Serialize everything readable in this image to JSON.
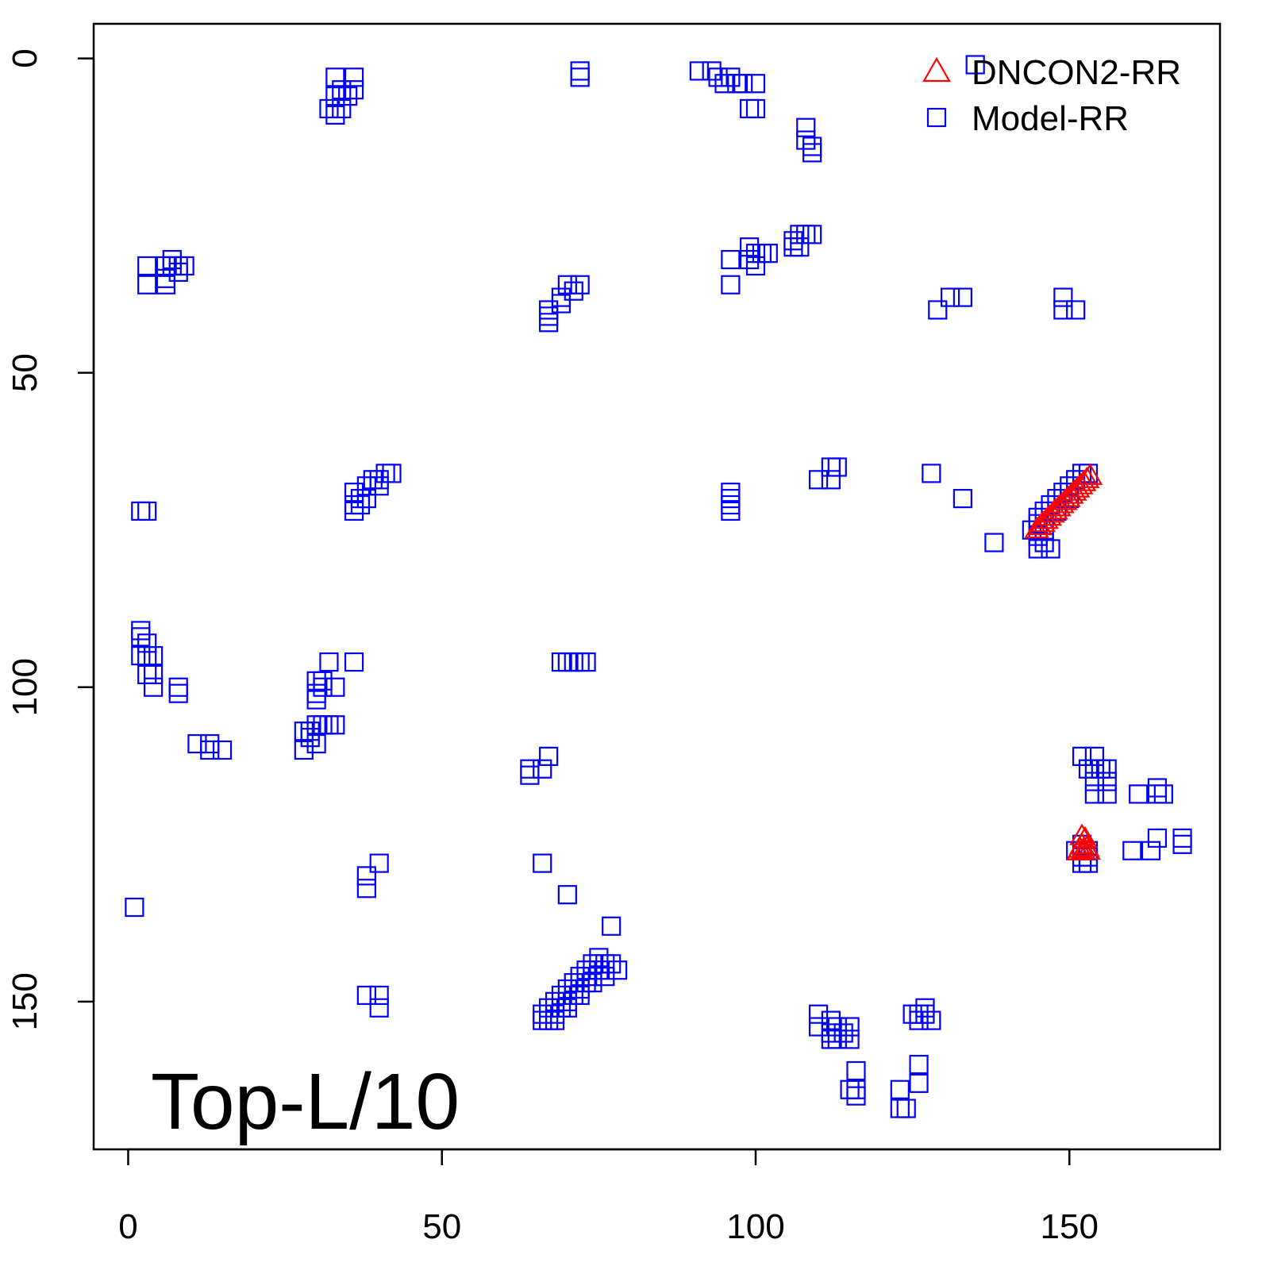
{
  "chart_data": {
    "type": "scatter",
    "title": "",
    "xlabel": "",
    "ylabel": "",
    "xlim": [
      -5.5,
      174
    ],
    "ylim": [
      -5.5,
      173.5
    ],
    "y_axis_inverted": true,
    "x_ticks": [
      0,
      50,
      100,
      150
    ],
    "y_ticks": [
      0,
      50,
      100,
      150
    ],
    "grid": false,
    "legend_position": "top-right",
    "annotation": "Top-L/10",
    "series": [
      {
        "name": "DNCON2-RR",
        "marker": "triangle",
        "color": "#ff0000",
        "points": [
          [
            144.8,
            74.8
          ],
          [
            145.3,
            74.3
          ],
          [
            145.8,
            73.8
          ],
          [
            146.3,
            73.3
          ],
          [
            146.8,
            72.8
          ],
          [
            147.3,
            72.3
          ],
          [
            147.8,
            71.8
          ],
          [
            148.3,
            71.3
          ],
          [
            148.8,
            70.8
          ],
          [
            149.3,
            70.3
          ],
          [
            149.8,
            69.8
          ],
          [
            150.3,
            69.3
          ],
          [
            150.8,
            68.8
          ],
          [
            151.3,
            68.3
          ],
          [
            151.8,
            67.8
          ],
          [
            152.3,
            67.3
          ],
          [
            152.8,
            66.8
          ],
          [
            153.3,
            66.3
          ],
          [
            151.5,
            126.0
          ],
          [
            152.0,
            125.0
          ],
          [
            152.5,
            124.0
          ],
          [
            151.7,
            125.6
          ],
          [
            152.2,
            125.8
          ],
          [
            152.8,
            125.4
          ],
          [
            153.0,
            125.9
          ],
          [
            152.0,
            123.6
          ]
        ]
      },
      {
        "name": "Model-RR",
        "marker": "square",
        "color": "#0000ff",
        "points": [
          [
            33,
            3
          ],
          [
            36,
            3
          ],
          [
            34,
            5
          ],
          [
            36,
            5
          ],
          [
            33,
            6
          ],
          [
            35,
            6
          ],
          [
            32,
            8
          ],
          [
            34,
            8
          ],
          [
            33,
            9
          ],
          [
            72,
            2
          ],
          [
            72,
            3
          ],
          [
            91,
            2
          ],
          [
            93,
            2
          ],
          [
            94,
            3
          ],
          [
            96,
            3
          ],
          [
            95,
            4
          ],
          [
            97,
            4
          ],
          [
            98,
            4
          ],
          [
            100,
            4
          ],
          [
            99,
            8
          ],
          [
            100,
            8
          ],
          [
            108,
            11
          ],
          [
            108,
            13
          ],
          [
            109,
            14
          ],
          [
            109,
            15
          ],
          [
            3,
            33
          ],
          [
            3,
            36
          ],
          [
            6,
            33
          ],
          [
            7,
            33
          ],
          [
            8,
            33
          ],
          [
            9,
            33
          ],
          [
            6,
            35
          ],
          [
            8,
            34
          ],
          [
            7,
            32
          ],
          [
            6,
            36
          ],
          [
            70,
            36
          ],
          [
            72,
            36
          ],
          [
            71,
            37
          ],
          [
            69,
            38
          ],
          [
            69,
            39
          ],
          [
            67,
            40
          ],
          [
            67,
            41
          ],
          [
            67,
            42
          ],
          [
            96,
            32
          ],
          [
            96,
            36
          ],
          [
            99,
            30
          ],
          [
            100,
            31
          ],
          [
            101,
            31
          ],
          [
            99,
            32
          ],
          [
            100,
            33
          ],
          [
            102,
            31
          ],
          [
            106,
            29
          ],
          [
            107,
            28
          ],
          [
            108,
            28
          ],
          [
            109,
            28
          ],
          [
            106,
            30
          ],
          [
            107,
            30
          ],
          [
            129,
            40
          ],
          [
            131,
            38
          ],
          [
            133,
            38
          ],
          [
            149,
            38
          ],
          [
            149,
            40
          ],
          [
            151,
            40
          ],
          [
            135,
            1
          ],
          [
            2,
            72
          ],
          [
            3,
            72
          ],
          [
            38,
            68
          ],
          [
            36,
            69
          ],
          [
            37,
            70
          ],
          [
            38,
            70
          ],
          [
            36,
            71
          ],
          [
            37,
            71
          ],
          [
            36,
            72
          ],
          [
            39,
            67
          ],
          [
            40,
            67
          ],
          [
            41,
            66
          ],
          [
            42,
            66
          ],
          [
            40,
            68
          ],
          [
            96,
            69
          ],
          [
            96,
            70
          ],
          [
            96,
            71
          ],
          [
            96,
            72
          ],
          [
            110,
            67
          ],
          [
            112,
            65
          ],
          [
            113,
            65
          ],
          [
            112,
            67
          ],
          [
            128,
            66
          ],
          [
            133,
            70
          ],
          [
            138,
            77
          ],
          [
            146,
            72
          ],
          [
            147,
            71
          ],
          [
            148,
            70
          ],
          [
            149,
            69
          ],
          [
            150,
            68
          ],
          [
            151,
            67
          ],
          [
            152,
            66
          ],
          [
            153,
            66
          ],
          [
            145,
            73
          ],
          [
            144,
            75
          ],
          [
            145,
            76
          ],
          [
            145,
            78
          ],
          [
            146,
            77
          ],
          [
            147,
            78
          ],
          [
            145,
            74
          ],
          [
            146,
            75
          ],
          [
            148,
            72
          ],
          [
            150,
            70
          ],
          [
            2,
            91
          ],
          [
            2,
            92
          ],
          [
            3,
            93
          ],
          [
            2,
            95
          ],
          [
            3,
            95
          ],
          [
            4,
            95
          ],
          [
            3,
            98
          ],
          [
            4,
            98
          ],
          [
            4,
            100
          ],
          [
            8,
            100
          ],
          [
            8,
            101
          ],
          [
            11,
            109
          ],
          [
            13,
            109
          ],
          [
            13,
            110
          ],
          [
            15,
            110
          ],
          [
            32,
            96
          ],
          [
            36,
            96
          ],
          [
            30,
            99
          ],
          [
            31,
            99
          ],
          [
            31,
            100
          ],
          [
            33,
            100
          ],
          [
            30,
            101
          ],
          [
            30,
            102
          ],
          [
            28,
            107
          ],
          [
            29,
            107
          ],
          [
            30,
            106
          ],
          [
            31,
            106
          ],
          [
            32,
            106
          ],
          [
            33,
            106
          ],
          [
            29,
            108
          ],
          [
            30,
            109
          ],
          [
            28,
            110
          ],
          [
            69,
            96
          ],
          [
            70,
            96
          ],
          [
            71,
            96
          ],
          [
            72,
            96
          ],
          [
            73,
            96
          ],
          [
            64,
            113
          ],
          [
            64,
            114
          ],
          [
            66,
            113
          ],
          [
            67,
            111
          ],
          [
            1,
            135
          ],
          [
            40,
            128
          ],
          [
            38,
            130
          ],
          [
            38,
            132
          ],
          [
            66,
            128
          ],
          [
            70,
            133
          ],
          [
            77,
            138
          ],
          [
            38,
            149
          ],
          [
            40,
            149
          ],
          [
            40,
            151
          ],
          [
            66,
            152
          ],
          [
            67,
            151
          ],
          [
            68,
            150
          ],
          [
            69,
            149
          ],
          [
            70,
            148
          ],
          [
            71,
            147
          ],
          [
            72,
            146
          ],
          [
            73,
            145
          ],
          [
            74,
            144
          ],
          [
            75,
            143
          ],
          [
            67,
            153
          ],
          [
            68,
            152
          ],
          [
            69,
            151
          ],
          [
            70,
            150
          ],
          [
            71,
            149
          ],
          [
            72,
            148
          ],
          [
            73,
            147
          ],
          [
            74,
            146
          ],
          [
            75,
            145
          ],
          [
            76,
            144
          ],
          [
            66,
            153
          ],
          [
            68,
            153
          ],
          [
            70,
            151
          ],
          [
            72,
            149
          ],
          [
            74,
            147
          ],
          [
            76,
            146
          ],
          [
            77,
            144
          ],
          [
            78,
            145
          ],
          [
            110,
            152
          ],
          [
            110,
            154
          ],
          [
            112,
            153
          ],
          [
            112,
            155
          ],
          [
            113,
            154
          ],
          [
            114,
            155
          ],
          [
            115,
            156
          ],
          [
            113,
            156
          ],
          [
            115,
            154
          ],
          [
            112,
            156
          ],
          [
            116,
            161
          ],
          [
            116,
            164
          ],
          [
            115,
            164
          ],
          [
            116,
            165
          ],
          [
            123,
            164
          ],
          [
            123,
            167
          ],
          [
            124,
            167
          ],
          [
            126,
            160
          ],
          [
            126,
            163
          ],
          [
            125,
            152
          ],
          [
            126,
            153
          ],
          [
            127,
            152
          ],
          [
            128,
            153
          ],
          [
            127,
            151
          ],
          [
            126,
            152
          ],
          [
            152,
            111
          ],
          [
            154,
            111
          ],
          [
            153,
            113
          ],
          [
            154,
            113
          ],
          [
            155,
            113
          ],
          [
            156,
            113
          ],
          [
            154,
            115
          ],
          [
            156,
            115
          ],
          [
            154,
            117
          ],
          [
            156,
            117
          ],
          [
            161,
            117
          ],
          [
            164,
            117
          ],
          [
            165,
            117
          ],
          [
            164,
            116
          ],
          [
            152,
            125
          ],
          [
            153,
            126
          ],
          [
            152,
            127
          ],
          [
            153,
            127
          ],
          [
            152,
            128
          ],
          [
            153,
            128
          ],
          [
            151,
            126
          ],
          [
            160,
            126
          ],
          [
            163,
            126
          ],
          [
            164,
            124
          ],
          [
            168,
            124
          ],
          [
            168,
            125
          ]
        ]
      }
    ]
  }
}
